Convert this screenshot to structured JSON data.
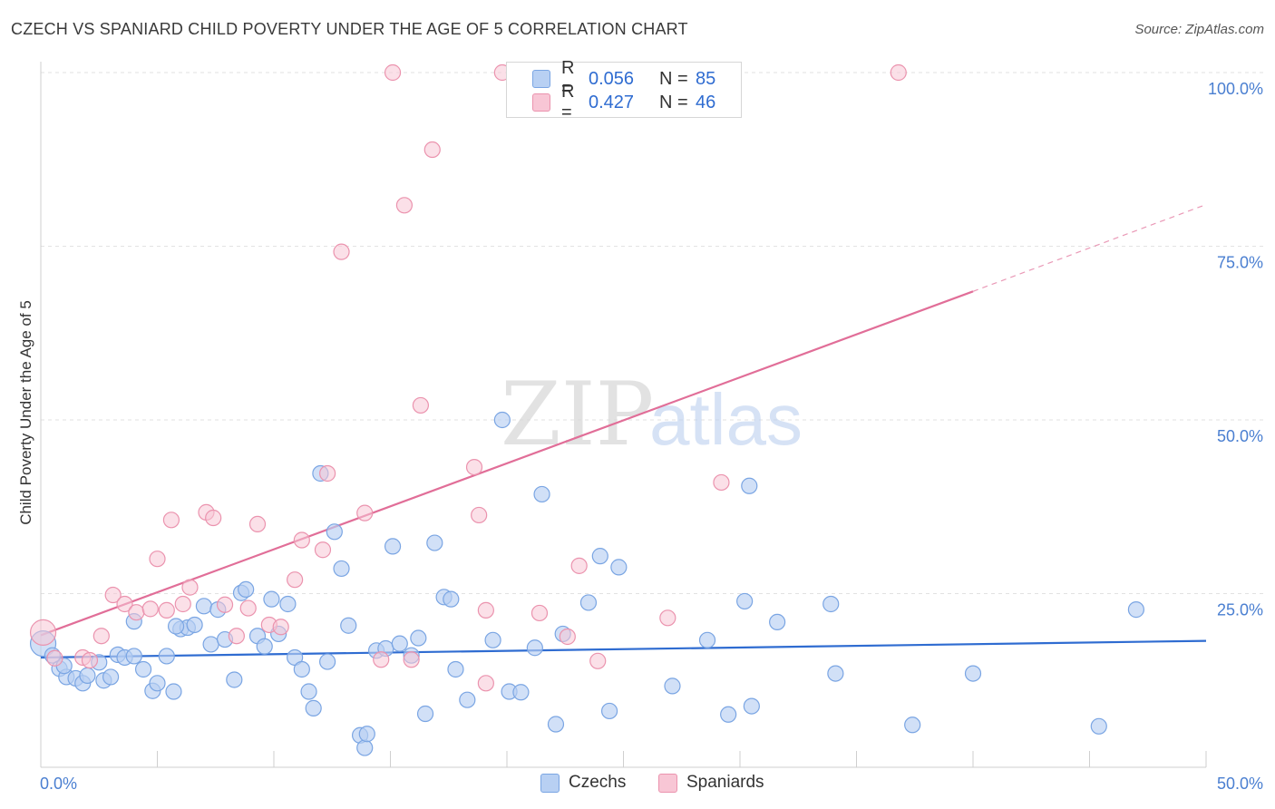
{
  "title": "CZECH VS SPANIARD CHILD POVERTY UNDER THE AGE OF 5 CORRELATION CHART",
  "source": "Source: ZipAtlas.com",
  "watermark": {
    "zip": "ZIP",
    "atlas": "atlas"
  },
  "colors": {
    "czech_fill": "#b8d0f3",
    "czech_stroke": "#7aa5e3",
    "czech_line": "#2f6cd1",
    "spaniard_fill": "#f8c6d5",
    "spaniard_stroke": "#eb93ae",
    "spaniard_line": "#e16e98",
    "tick_text": "#4a7fd1",
    "grid": "#e2e2e2"
  },
  "legend_top": {
    "rows": [
      {
        "r_label": "R =",
        "r_value": "0.056",
        "n_label": "N =",
        "n_value": "85"
      },
      {
        "r_label": "R =",
        "r_value": "0.427",
        "n_label": "N =",
        "n_value": "46"
      }
    ]
  },
  "legend_bottom": {
    "czechs": "Czechs",
    "spaniards": "Spaniards"
  },
  "chart_data": {
    "type": "scatter",
    "xlabel": "",
    "ylabel": "Child Poverty Under the Age of 5",
    "xlim": [
      0,
      50
    ],
    "ylim": [
      0,
      100
    ],
    "x_tick_labels": [
      "0.0%",
      "50.0%"
    ],
    "y_tick_labels": [
      "25.0%",
      "50.0%",
      "75.0%",
      "100.0%"
    ],
    "y_ticks": [
      25,
      50,
      75,
      100
    ],
    "series": [
      {
        "name": "Czechs",
        "r": 0.056,
        "n": 85,
        "trend": {
          "x0": 0,
          "y0": 15.8,
          "x1": 50,
          "y1": 18.2
        },
        "points": [
          [
            0.1,
            17.8
          ],
          [
            0.5,
            16.1
          ],
          [
            0.8,
            14.2
          ],
          [
            1.1,
            13.0
          ],
          [
            1.5,
            12.8
          ],
          [
            1.8,
            12.1
          ],
          [
            2.0,
            13.2
          ],
          [
            2.5,
            15.1
          ],
          [
            2.7,
            12.5
          ],
          [
            3.0,
            13.0
          ],
          [
            3.3,
            16.2
          ],
          [
            3.6,
            15.8
          ],
          [
            4.0,
            16.0
          ],
          [
            4.0,
            21.0
          ],
          [
            4.4,
            14.1
          ],
          [
            4.8,
            11.0
          ],
          [
            5.0,
            12.1
          ],
          [
            5.4,
            16.0
          ],
          [
            5.7,
            10.9
          ],
          [
            6.0,
            19.9
          ],
          [
            6.3,
            20.1
          ],
          [
            6.6,
            20.5
          ],
          [
            7.0,
            23.2
          ],
          [
            7.3,
            17.7
          ],
          [
            7.6,
            22.7
          ],
          [
            7.9,
            18.4
          ],
          [
            8.3,
            12.6
          ],
          [
            8.6,
            25.1
          ],
          [
            8.8,
            25.6
          ],
          [
            9.3,
            18.9
          ],
          [
            9.6,
            17.4
          ],
          [
            9.9,
            24.2
          ],
          [
            10.2,
            19.2
          ],
          [
            10.6,
            23.5
          ],
          [
            10.9,
            15.8
          ],
          [
            11.2,
            14.1
          ],
          [
            11.5,
            10.9
          ],
          [
            11.7,
            8.5
          ],
          [
            12.0,
            42.3
          ],
          [
            12.3,
            15.2
          ],
          [
            12.6,
            33.9
          ],
          [
            12.9,
            28.6
          ],
          [
            13.2,
            20.4
          ],
          [
            13.7,
            4.6
          ],
          [
            13.9,
            2.8
          ],
          [
            14.0,
            4.8
          ],
          [
            14.4,
            16.8
          ],
          [
            14.8,
            17.1
          ],
          [
            15.1,
            31.8
          ],
          [
            15.4,
            17.8
          ],
          [
            15.9,
            16.1
          ],
          [
            16.2,
            18.6
          ],
          [
            16.5,
            7.7
          ],
          [
            16.9,
            32.3
          ],
          [
            17.3,
            24.5
          ],
          [
            17.6,
            24.2
          ],
          [
            17.8,
            14.1
          ],
          [
            18.3,
            9.7
          ],
          [
            19.4,
            18.3
          ],
          [
            19.8,
            50.0
          ],
          [
            20.1,
            10.9
          ],
          [
            20.6,
            10.8
          ],
          [
            21.2,
            17.2
          ],
          [
            21.5,
            39.3
          ],
          [
            22.1,
            6.2
          ],
          [
            22.4,
            19.2
          ],
          [
            23.5,
            23.7
          ],
          [
            24.0,
            30.4
          ],
          [
            24.4,
            8.1
          ],
          [
            24.8,
            28.8
          ],
          [
            27.1,
            11.7
          ],
          [
            28.6,
            18.3
          ],
          [
            29.5,
            7.6
          ],
          [
            30.2,
            23.9
          ],
          [
            30.4,
            40.5
          ],
          [
            30.5,
            8.8
          ],
          [
            31.6,
            20.9
          ],
          [
            33.9,
            23.5
          ],
          [
            34.1,
            13.5
          ],
          [
            37.4,
            6.1
          ],
          [
            40.0,
            13.5
          ],
          [
            45.4,
            5.9
          ],
          [
            47.0,
            22.7
          ],
          [
            1.0,
            14.6
          ],
          [
            5.8,
            20.3
          ]
        ]
      },
      {
        "name": "Spaniards",
        "r": 0.427,
        "n": 46,
        "trend": {
          "x0": 0,
          "y0": 19.0,
          "x1": 40,
          "y1": 68.5
        },
        "trend_dashed": {
          "x0": 40,
          "y0": 68.5,
          "x1": 50,
          "y1": 81.0
        },
        "points": [
          [
            0.1,
            19.4
          ],
          [
            0.6,
            15.7
          ],
          [
            1.8,
            15.8
          ],
          [
            2.1,
            15.4
          ],
          [
            2.6,
            18.9
          ],
          [
            3.1,
            24.8
          ],
          [
            3.6,
            23.5
          ],
          [
            4.1,
            22.3
          ],
          [
            4.7,
            22.8
          ],
          [
            5.0,
            30.0
          ],
          [
            5.6,
            35.6
          ],
          [
            6.1,
            23.5
          ],
          [
            6.4,
            25.9
          ],
          [
            7.1,
            36.7
          ],
          [
            7.4,
            35.9
          ],
          [
            7.9,
            23.4
          ],
          [
            8.4,
            18.9
          ],
          [
            8.9,
            22.9
          ],
          [
            9.3,
            35.0
          ],
          [
            9.8,
            20.5
          ],
          [
            10.3,
            20.2
          ],
          [
            10.9,
            27.0
          ],
          [
            11.2,
            32.7
          ],
          [
            12.1,
            31.3
          ],
          [
            12.3,
            42.3
          ],
          [
            13.9,
            36.6
          ],
          [
            14.6,
            15.5
          ],
          [
            15.1,
            100.0
          ],
          [
            15.9,
            15.5
          ],
          [
            16.3,
            52.1
          ],
          [
            16.8,
            88.9
          ],
          [
            15.6,
            80.9
          ],
          [
            12.9,
            74.2
          ],
          [
            18.6,
            43.2
          ],
          [
            18.8,
            36.3
          ],
          [
            19.1,
            12.1
          ],
          [
            19.1,
            22.6
          ],
          [
            21.4,
            22.2
          ],
          [
            22.6,
            18.8
          ],
          [
            23.1,
            29.0
          ],
          [
            23.9,
            15.3
          ],
          [
            26.9,
            21.5
          ],
          [
            29.2,
            41.0
          ],
          [
            36.8,
            100.0
          ],
          [
            19.8,
            100.0
          ],
          [
            5.4,
            22.6
          ]
        ]
      }
    ]
  }
}
